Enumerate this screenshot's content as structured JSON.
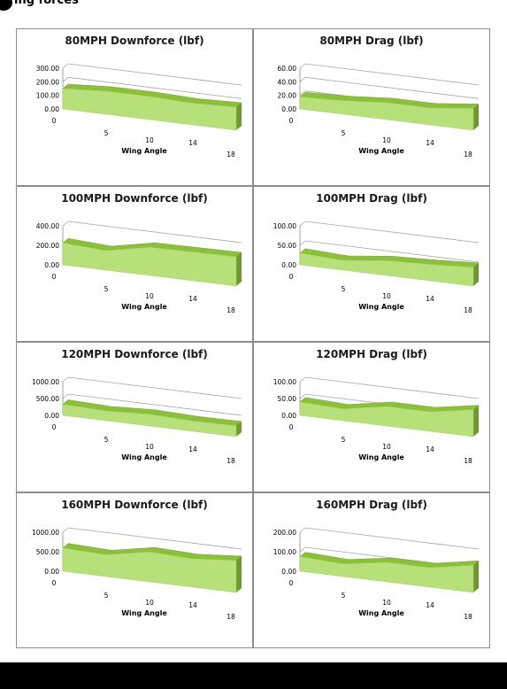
{
  "header": {
    "title": "ing forces"
  },
  "colors": {
    "area_front": "#b8e07a",
    "area_top": "#8cbf3a",
    "area_side": "#6e9a2c",
    "gridline": "#a6a6a6"
  },
  "chart_data": [
    {
      "type": "area",
      "title": "80MPH Downforce (lbf)",
      "xlabel": "Wing Angle",
      "ylabel": "",
      "yticks": [
        "0.00",
        "100.00",
        "200.00",
        "300.00"
      ],
      "ylim": [
        0,
        300
      ],
      "categories": [
        "0",
        "5",
        "10",
        "14",
        "18"
      ],
      "values": [
        150,
        170,
        170,
        160,
        170
      ]
    },
    {
      "type": "area",
      "title": "80MPH Drag (lbf)",
      "xlabel": "Wing Angle",
      "ylabel": "",
      "yticks": [
        "0.00",
        "20.00",
        "40.00",
        "60.00"
      ],
      "ylim": [
        0,
        60
      ],
      "categories": [
        "0",
        "5",
        "10",
        "14",
        "18"
      ],
      "values": [
        18,
        20,
        25,
        25,
        32
      ]
    },
    {
      "type": "area",
      "title": "100MPH Downforce (lbf)",
      "xlabel": "Wing Angle",
      "ylabel": "",
      "yticks": [
        "0.00",
        "200.00",
        "400.00"
      ],
      "ylim": [
        0,
        400
      ],
      "categories": [
        "0",
        "5",
        "10",
        "14",
        "18"
      ],
      "values": [
        225,
        200,
        290,
        295,
        300
      ]
    },
    {
      "type": "area",
      "title": "100MPH Drag (lbf)",
      "xlabel": "Wing Angle",
      "ylabel": "",
      "yticks": [
        "0.00",
        "50.00",
        "100.00"
      ],
      "ylim": [
        0,
        100
      ],
      "categories": [
        "0",
        "5",
        "10",
        "14",
        "18"
      ],
      "values": [
        30,
        25,
        38,
        42,
        48
      ]
    },
    {
      "type": "area",
      "title": "120MPH Downforce (lbf)",
      "xlabel": "Wing Angle",
      "ylabel": "",
      "yticks": [
        "0.00",
        "500.00",
        "1000.00"
      ],
      "ylim": [
        0,
        1000
      ],
      "categories": [
        "0",
        "5",
        "10",
        "14",
        "18"
      ],
      "values": [
        330,
        290,
        350,
        310,
        320
      ]
    },
    {
      "type": "area",
      "title": "120MPH Drag (lbf)",
      "xlabel": "Wing Angle",
      "ylabel": "",
      "yticks": [
        "0.00",
        "50.00",
        "100.00"
      ],
      "ylim": [
        0,
        100
      ],
      "categories": [
        "0",
        "5",
        "10",
        "14",
        "18"
      ],
      "values": [
        40,
        35,
        58,
        58,
        80
      ]
    },
    {
      "type": "area",
      "title": "160MPH Downforce (lbf)",
      "xlabel": "Wing Angle",
      "ylabel": "",
      "yticks": [
        "0.00",
        "500.00",
        "1000.00"
      ],
      "ylim": [
        0,
        1000
      ],
      "categories": [
        "0",
        "5",
        "10",
        "14",
        "18"
      ],
      "values": [
        600,
        560,
        770,
        730,
        820
      ]
    },
    {
      "type": "area",
      "title": "160MPH Drag (lbf)",
      "xlabel": "Wing Angle",
      "ylabel": "",
      "yticks": [
        "0.00",
        "100.00",
        "200.00"
      ],
      "ylim": [
        0,
        200
      ],
      "categories": [
        "0",
        "5",
        "10",
        "14",
        "18"
      ],
      "values": [
        75,
        65,
        100,
        100,
        140
      ]
    }
  ]
}
